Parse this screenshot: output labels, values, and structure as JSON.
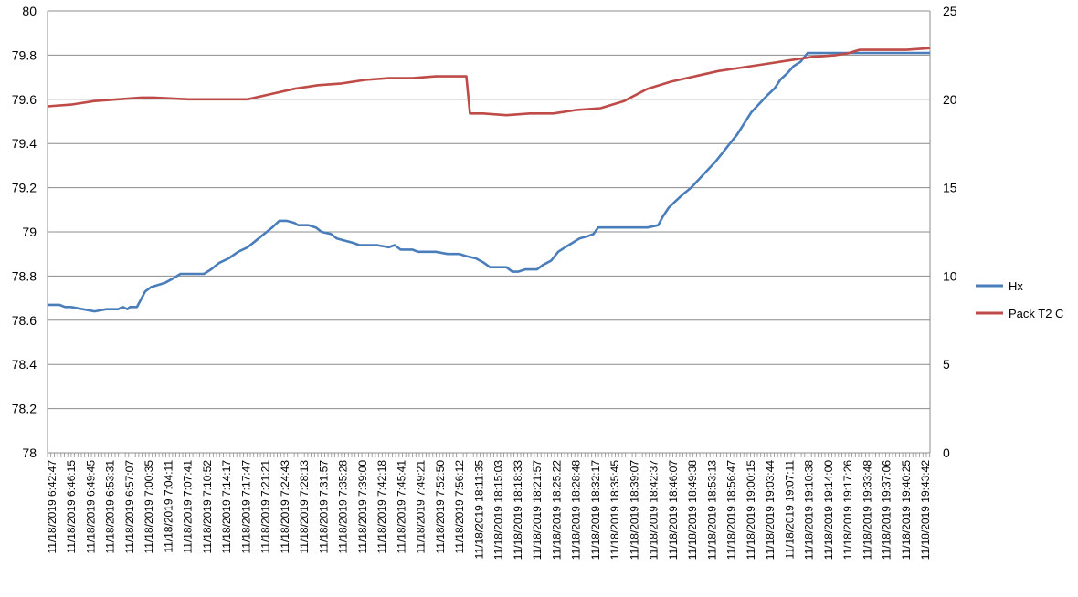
{
  "chart_data": {
    "type": "line",
    "title": "",
    "xlabel": "",
    "ylabel": "",
    "y2label": "",
    "grid": true,
    "legend_position": "right",
    "left_axis": {
      "min": 78,
      "max": 80,
      "step": 0.2,
      "ticks": [
        "78",
        "78.2",
        "78.4",
        "78.6",
        "78.8",
        "79",
        "79.2",
        "79.4",
        "79.6",
        "79.8",
        "80"
      ]
    },
    "right_axis": {
      "min": 0,
      "max": 25,
      "step": 5,
      "ticks": [
        "0",
        "5",
        "10",
        "15",
        "20",
        "25"
      ]
    },
    "categories": [
      "11/18/2019 6:42:47",
      "11/18/2019 6:46:15",
      "11/18/2019 6:49:45",
      "11/18/2019 6:53:31",
      "11/18/2019 6:57:07",
      "11/18/2019 7:00:35",
      "11/18/2019 7:04:11",
      "11/18/2019 7:07:41",
      "11/18/2019 7:10:52",
      "11/18/2019 7:14:17",
      "11/18/2019 7:17:47",
      "11/18/2019 7:21:21",
      "11/18/2019 7:24:43",
      "11/18/2019 7:28:13",
      "11/18/2019 7:31:57",
      "11/18/2019 7:35:28",
      "11/18/2019 7:39:00",
      "11/18/2019 7:42:18",
      "11/18/2019 7:45:41",
      "11/18/2019 7:49:21",
      "11/18/2019 7:52:50",
      "11/18/2019 7:56:12",
      "11/18/2019 18:11:35",
      "11/18/2019 18:15:03",
      "11/18/2019 18:18:33",
      "11/18/2019 18:21:57",
      "11/18/2019 18:25:22",
      "11/18/2019 18:28:48",
      "11/18/2019 18:32:17",
      "11/18/2019 18:35:45",
      "11/18/2019 18:39:07",
      "11/18/2019 18:42:37",
      "11/18/2019 18:46:07",
      "11/18/2019 18:49:38",
      "11/18/2019 18:53:13",
      "11/18/2019 18:56:47",
      "11/18/2019 19:00:15",
      "11/18/2019 19:03:44",
      "11/18/2019 19:07:11",
      "11/18/2019 19:10:38",
      "11/18/2019 19:14:00",
      "11/18/2019 19:17:26",
      "11/18/2019 19:33:48",
      "11/18/2019 19:37:06",
      "11/18/2019 19:40:25",
      "11/18/2019 19:43:42"
    ],
    "series": [
      {
        "name": "Hx",
        "axis": "left",
        "color": "#4a7ebb",
        "values": [
          {
            "x": 0,
            "y": 78.67
          },
          {
            "x": 1,
            "y": 78.67
          },
          {
            "x": 1.5,
            "y": 78.66
          },
          {
            "x": 2,
            "y": 78.66
          },
          {
            "x": 3,
            "y": 78.65
          },
          {
            "x": 4,
            "y": 78.64
          },
          {
            "x": 5,
            "y": 78.65
          },
          {
            "x": 6,
            "y": 78.65
          },
          {
            "x": 6.4,
            "y": 78.66
          },
          {
            "x": 6.8,
            "y": 78.65
          },
          {
            "x": 7,
            "y": 78.66
          },
          {
            "x": 7.6,
            "y": 78.66
          },
          {
            "x": 7.9,
            "y": 78.69
          },
          {
            "x": 8.3,
            "y": 78.73
          },
          {
            "x": 8.8,
            "y": 78.75
          },
          {
            "x": 9.4,
            "y": 78.76
          },
          {
            "x": 10,
            "y": 78.77
          },
          {
            "x": 10.7,
            "y": 78.79
          },
          {
            "x": 11.3,
            "y": 78.81
          },
          {
            "x": 12,
            "y": 78.81
          },
          {
            "x": 13.3,
            "y": 78.81
          },
          {
            "x": 13.9,
            "y": 78.83
          },
          {
            "x": 14.6,
            "y": 78.86
          },
          {
            "x": 15.4,
            "y": 78.88
          },
          {
            "x": 16.2,
            "y": 78.91
          },
          {
            "x": 17,
            "y": 78.93
          },
          {
            "x": 17.7,
            "y": 78.96
          },
          {
            "x": 18.4,
            "y": 78.99
          },
          {
            "x": 19.1,
            "y": 79.02
          },
          {
            "x": 19.7,
            "y": 79.05
          },
          {
            "x": 20.3,
            "y": 79.05
          },
          {
            "x": 21,
            "y": 79.04
          },
          {
            "x": 21.3,
            "y": 79.03
          },
          {
            "x": 22.2,
            "y": 79.03
          },
          {
            "x": 22.8,
            "y": 79.02
          },
          {
            "x": 23.3,
            "y": 79
          },
          {
            "x": 24.1,
            "y": 78.99
          },
          {
            "x": 24.6,
            "y": 78.97
          },
          {
            "x": 25.3,
            "y": 78.96
          },
          {
            "x": 26,
            "y": 78.95
          },
          {
            "x": 26.5,
            "y": 78.94
          },
          {
            "x": 28,
            "y": 78.94
          },
          {
            "x": 29,
            "y": 78.93
          },
          {
            "x": 29.5,
            "y": 78.94
          },
          {
            "x": 30,
            "y": 78.92
          },
          {
            "x": 31,
            "y": 78.92
          },
          {
            "x": 31.5,
            "y": 78.91
          },
          {
            "x": 33,
            "y": 78.91
          },
          {
            "x": 34,
            "y": 78.9
          },
          {
            "x": 35,
            "y": 78.9
          },
          {
            "x": 35.6,
            "y": 78.89
          },
          {
            "x": 36.4,
            "y": 78.88
          },
          {
            "x": 37.1,
            "y": 78.86
          },
          {
            "x": 37.6,
            "y": 78.84
          },
          {
            "x": 39,
            "y": 78.84
          },
          {
            "x": 39.5,
            "y": 78.82
          },
          {
            "x": 40,
            "y": 78.82
          },
          {
            "x": 40.6,
            "y": 78.83
          },
          {
            "x": 41.6,
            "y": 78.83
          },
          {
            "x": 42.1,
            "y": 78.85
          },
          {
            "x": 42.8,
            "y": 78.87
          },
          {
            "x": 43.4,
            "y": 78.91
          },
          {
            "x": 44,
            "y": 78.93
          },
          {
            "x": 44.6,
            "y": 78.95
          },
          {
            "x": 45.2,
            "y": 78.97
          },
          {
            "x": 45.9,
            "y": 78.98
          },
          {
            "x": 46.4,
            "y": 78.99
          },
          {
            "x": 46.8,
            "y": 79.02
          },
          {
            "x": 51,
            "y": 79.02
          },
          {
            "x": 51.9,
            "y": 79.03
          },
          {
            "x": 52.3,
            "y": 79.07
          },
          {
            "x": 52.8,
            "y": 79.11
          },
          {
            "x": 53.4,
            "y": 79.14
          },
          {
            "x": 54,
            "y": 79.17
          },
          {
            "x": 54.7,
            "y": 79.2
          },
          {
            "x": 55.4,
            "y": 79.24
          },
          {
            "x": 56.1,
            "y": 79.28
          },
          {
            "x": 56.8,
            "y": 79.32
          },
          {
            "x": 57.4,
            "y": 79.36
          },
          {
            "x": 58,
            "y": 79.4
          },
          {
            "x": 58.6,
            "y": 79.44
          },
          {
            "x": 59.2,
            "y": 79.49
          },
          {
            "x": 59.8,
            "y": 79.54
          },
          {
            "x": 60.5,
            "y": 79.58
          },
          {
            "x": 61.2,
            "y": 79.62
          },
          {
            "x": 61.8,
            "y": 79.65
          },
          {
            "x": 62.3,
            "y": 79.69
          },
          {
            "x": 62.9,
            "y": 79.72
          },
          {
            "x": 63.4,
            "y": 79.75
          },
          {
            "x": 64,
            "y": 79.77
          },
          {
            "x": 64.6,
            "y": 79.81
          },
          {
            "x": 66,
            "y": 79.81
          },
          {
            "x": 70,
            "y": 79.81
          },
          {
            "x": 74,
            "y": 79.81
          },
          {
            "x": 75,
            "y": 79.81
          }
        ]
      },
      {
        "name": "Pack T2 C",
        "axis": "right",
        "color": "#be4b48",
        "values": [
          {
            "x": 0,
            "y": 19.6
          },
          {
            "x": 2,
            "y": 19.7
          },
          {
            "x": 4,
            "y": 19.9
          },
          {
            "x": 6,
            "y": 20.0
          },
          {
            "x": 8,
            "y": 20.1
          },
          {
            "x": 9,
            "y": 20.1
          },
          {
            "x": 12,
            "y": 20.0
          },
          {
            "x": 14,
            "y": 20.0
          },
          {
            "x": 17,
            "y": 20.0
          },
          {
            "x": 19,
            "y": 20.3
          },
          {
            "x": 21,
            "y": 20.6
          },
          {
            "x": 23,
            "y": 20.8
          },
          {
            "x": 25,
            "y": 20.9
          },
          {
            "x": 27,
            "y": 21.1
          },
          {
            "x": 29,
            "y": 21.2
          },
          {
            "x": 31,
            "y": 21.2
          },
          {
            "x": 33,
            "y": 21.3
          },
          {
            "x": 35,
            "y": 21.3
          },
          {
            "x": 35.6,
            "y": 21.3
          },
          {
            "x": 35.9,
            "y": 19.2
          },
          {
            "x": 37,
            "y": 19.2
          },
          {
            "x": 39,
            "y": 19.1
          },
          {
            "x": 41,
            "y": 19.2
          },
          {
            "x": 43,
            "y": 19.2
          },
          {
            "x": 45,
            "y": 19.4
          },
          {
            "x": 47,
            "y": 19.5
          },
          {
            "x": 49,
            "y": 19.9
          },
          {
            "x": 51,
            "y": 20.6
          },
          {
            "x": 53,
            "y": 21.0
          },
          {
            "x": 55,
            "y": 21.3
          },
          {
            "x": 57,
            "y": 21.6
          },
          {
            "x": 59,
            "y": 21.8
          },
          {
            "x": 61,
            "y": 22.0
          },
          {
            "x": 63,
            "y": 22.2
          },
          {
            "x": 65,
            "y": 22.4
          },
          {
            "x": 67,
            "y": 22.5
          },
          {
            "x": 68,
            "y": 22.6
          },
          {
            "x": 69,
            "y": 22.8
          },
          {
            "x": 71,
            "y": 22.8
          },
          {
            "x": 73,
            "y": 22.8
          },
          {
            "x": 75,
            "y": 22.9
          }
        ]
      }
    ]
  }
}
